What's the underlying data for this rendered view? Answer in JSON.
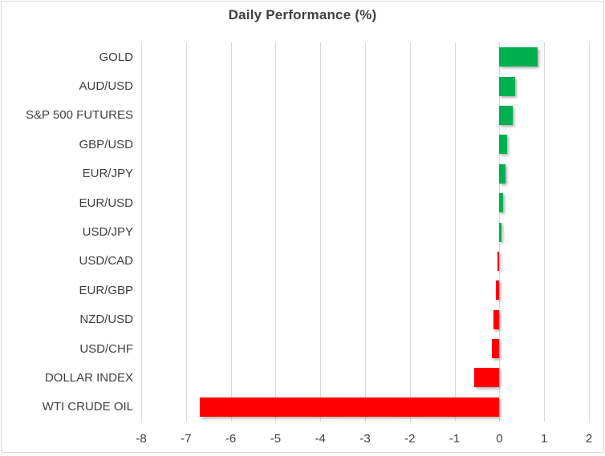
{
  "chart_data": {
    "type": "bar",
    "orientation": "horizontal",
    "title": "Daily Performance (%)",
    "categories": [
      "GOLD",
      "AUD/USD",
      "S&P 500 FUTURES",
      "GBP/USD",
      "EUR/JPY",
      "EUR/USD",
      "USD/JPY",
      "USD/CAD",
      "EUR/GBP",
      "NZD/USD",
      "USD/CHF",
      "DOLLAR INDEX",
      "WTI CRUDE OIL"
    ],
    "values": [
      0.85,
      0.35,
      0.3,
      0.17,
      0.13,
      0.08,
      0.05,
      -0.05,
      -0.08,
      -0.14,
      -0.16,
      -0.57,
      -6.7
    ],
    "xlim": [
      -8,
      2
    ],
    "xticks": [
      -8,
      -7,
      -6,
      -5,
      -4,
      -3,
      -2,
      -1,
      0,
      1,
      2
    ],
    "grid": "vertical",
    "legend": "none",
    "colors": {
      "positive": "#00B050",
      "negative": "#FF0000",
      "gridline": "#D9D9D9",
      "border": "#D9D9D9",
      "text": "#404040",
      "background": "#FFFFFF"
    }
  }
}
